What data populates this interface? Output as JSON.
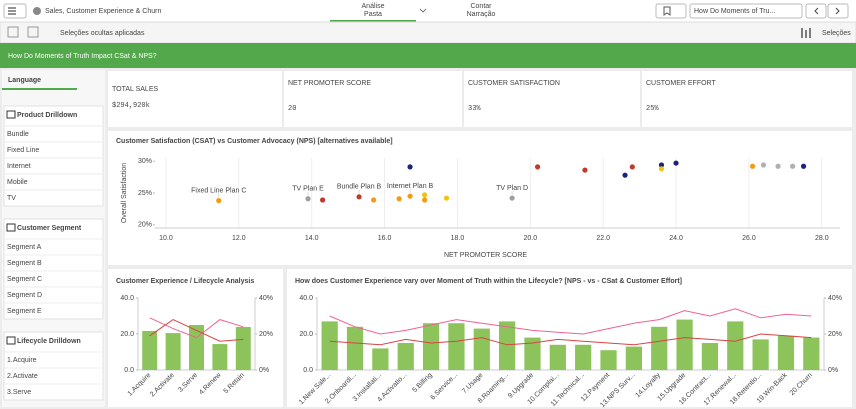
{
  "toolbar": {
    "app_title": "Sales, Customer Experience & Churn",
    "tabs": [
      {
        "top": "Análise",
        "bottom": "Pasta"
      },
      {
        "top": "Contar",
        "bottom": "Narração"
      }
    ],
    "sheet_name": "How Do Moments of Tru..."
  },
  "selections_bar": {
    "hidden": "Seleções ocultas aplicadas",
    "button": "Seleções"
  },
  "header": {
    "title": "How Do Moments of Truth Impact CSat & NPS?"
  },
  "filters": {
    "tab": "Language",
    "groups": [
      {
        "title": "Product Drilldown",
        "items": [
          "Bundle",
          "Fixed Line",
          "Internet",
          "Mobile",
          "TV"
        ]
      },
      {
        "title": "Customer Segment",
        "items": [
          "Segment A",
          "Segment B",
          "Segment C",
          "Segment D",
          "Segment E"
        ]
      },
      {
        "title": "Lifecycle Drilldown",
        "items": [
          "1.Acquire",
          "2.Activate",
          "3.Serve"
        ]
      }
    ]
  },
  "kpis": [
    {
      "label": "TOTAL SALES",
      "value": "$294,920k"
    },
    {
      "label": "NET PROMOTER SCORE",
      "value": "20"
    },
    {
      "label": "CUSTOMER SATISFACTION",
      "value": "33%"
    },
    {
      "label": "CUSTOMER EFFORT",
      "value": "25%"
    }
  ],
  "charts": [
    {
      "type": "scatter",
      "title": "Customer Satisfaction (CSAT) vs Customer Advocacy (NPS) [alternatives available]",
      "x_label": "NET PROMOTER SCORE",
      "y_label": "Overall Satisfaction",
      "xlim": [
        9.7,
        28.5
      ],
      "ylim": [
        19.5,
        30.5
      ],
      "grid": true,
      "xticks": [
        {
          "value": 10,
          "label": "10.0"
        },
        {
          "value": 12,
          "label": "12.0"
        },
        {
          "value": 14,
          "label": "14.0"
        },
        {
          "value": 16,
          "label": "16.0"
        },
        {
          "value": 18,
          "label": "18.0"
        },
        {
          "value": 20,
          "label": "20.0"
        },
        {
          "value": 22,
          "label": "22.0"
        },
        {
          "value": 24,
          "label": "24.0"
        },
        {
          "value": 26,
          "label": "26.0"
        },
        {
          "value": 28,
          "label": "28.0"
        }
      ],
      "yticks": [
        {
          "value": 20,
          "label": "20%"
        },
        {
          "value": 25,
          "label": "25%"
        },
        {
          "value": 30,
          "label": "30%"
        }
      ],
      "x": [
        11.45,
        13.9,
        14.3,
        15.3,
        15.7,
        16.4,
        16.7,
        16.7,
        17.1,
        17.1,
        17.7,
        19.5,
        20.2,
        21.5,
        22.6,
        22.8,
        23.6,
        23.6,
        24.0,
        26.1,
        26.4,
        26.8,
        27.2,
        27.5
      ],
      "values": [
        23.8,
        24.1,
        23.9,
        24.4,
        23.9,
        24.1,
        29.1,
        24.5,
        24.7,
        23.9,
        24.2,
        24.2,
        29.1,
        28.6,
        27.8,
        29.1,
        29.4,
        28.8,
        29.7,
        29.2,
        29.4,
        29.2,
        29.2,
        29.2
      ],
      "colors": [
        "#f39c12",
        "#9e9e9e",
        "#c0392b",
        "#c0392b",
        "#f39c12",
        "#f39c12",
        "#1a237e",
        "#f39c12",
        "#f1c40f",
        "#f39c12",
        "#f1c40f",
        "#9e9e9e",
        "#c0392b",
        "#c0392b",
        "#1a237e",
        "#c0392b",
        "#1a237e",
        "#f1c40f",
        "#1a237e",
        "#f39c12",
        "#b0b0b0",
        "#b0b0b0",
        "#b0b0b0",
        "#1a237e"
      ],
      "point_labels": [
        "Fixed Line Plan C",
        "TV Plan E",
        null,
        "Bundle Plan B",
        null,
        null,
        null,
        "Internet Plan B",
        null,
        null,
        null,
        "TV Plan D",
        null,
        null,
        null,
        null,
        null,
        null,
        null,
        null,
        null,
        null,
        null,
        null
      ]
    },
    {
      "type": "combo",
      "title": "Customer Experience / Lifecycle Analysis",
      "categories": [
        "1.Acquire",
        "2.Activate",
        "3.Serve",
        "4.Renew",
        "5.Retain"
      ],
      "ylim": [
        0,
        40
      ],
      "yticks": [
        {
          "value": 0,
          "label": "0.0"
        },
        {
          "value": 20,
          "label": "20.0"
        },
        {
          "value": 40,
          "label": "40.0"
        }
      ],
      "y2lim": [
        0,
        40
      ],
      "y2ticks": [
        {
          "value": 0,
          "label": "0%"
        },
        {
          "value": 20,
          "label": "20%"
        },
        {
          "value": 40,
          "label": "40%"
        }
      ],
      "series": [
        {
          "type": "bar",
          "color": "#8dc35b",
          "values": [
            21.7,
            20.5,
            25,
            14.4,
            23.9
          ]
        },
        {
          "type": "line",
          "axis": "y2",
          "color": "#f06292",
          "values": [
            29,
            23,
            18,
            28,
            24
          ]
        },
        {
          "type": "line",
          "axis": "y2",
          "color": "#d84343",
          "values": [
            19,
            28,
            22,
            16,
            17
          ]
        }
      ]
    },
    {
      "type": "combo",
      "title": "How does Customer Experience vary over Moment of Truth within the Lifecycle? [NPS - vs - CSat & Customer Effort]",
      "categories": [
        "1.New Sale...",
        "2.Onboardi...",
        "3.Installati...",
        "4.Activatio...",
        "5.Billing",
        "6.Service...",
        "7.Usage",
        "8.Roaming...",
        "9.Upgrade",
        "10.Complai...",
        "11.Technical...",
        "12.Payment",
        "13.NPS Surv...",
        "14.Loyalty",
        "15.Upgrade",
        "16.Contract...",
        "17.Renewal...",
        "18.Retentio...",
        "19.Win-Back",
        "20.Churn"
      ],
      "ylim": [
        0,
        40
      ],
      "yticks": [
        {
          "value": 0,
          "label": "0.0"
        },
        {
          "value": 20,
          "label": "20.0"
        },
        {
          "value": 40,
          "label": "40.0"
        }
      ],
      "y2lim": [
        0,
        40
      ],
      "y2ticks": [
        {
          "value": 0,
          "label": "0%"
        },
        {
          "value": 20,
          "label": "20%"
        },
        {
          "value": 40,
          "label": "40%"
        }
      ],
      "series": [
        {
          "type": "bar",
          "color": "#8dc35b",
          "values": [
            27,
            24,
            12,
            15,
            26,
            26,
            23,
            27,
            18,
            14,
            14,
            11,
            13,
            24,
            28,
            15,
            27,
            17,
            19,
            18
          ]
        },
        {
          "type": "line",
          "axis": "y2",
          "color": "#f06292",
          "values": [
            30,
            24,
            20,
            22,
            25,
            28,
            26,
            24,
            22,
            21,
            20,
            23,
            26,
            28,
            33,
            30,
            34,
            29,
            31,
            30
          ]
        },
        {
          "type": "line",
          "axis": "y2",
          "color": "#d84343",
          "values": [
            16,
            15,
            14,
            17,
            15,
            16,
            18,
            14,
            15,
            17,
            16,
            15,
            14,
            16,
            18,
            17,
            16,
            20,
            19,
            18
          ]
        }
      ]
    }
  ]
}
